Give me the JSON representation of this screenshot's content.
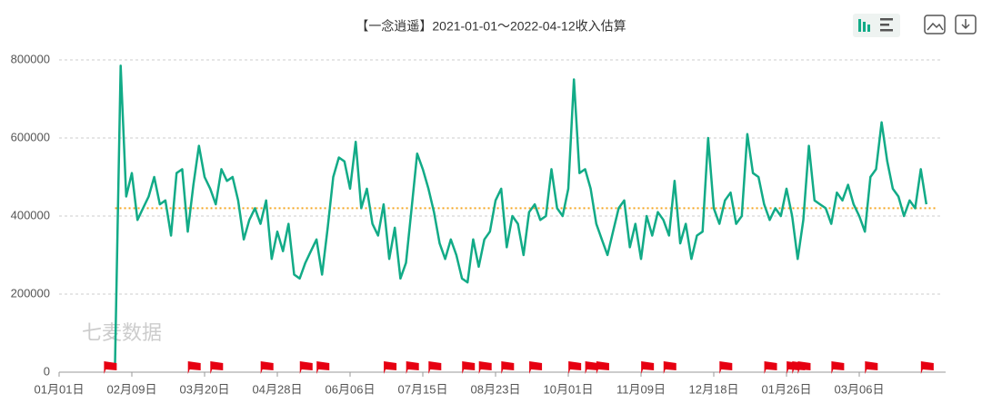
{
  "chart_data": {
    "type": "line",
    "title": "【一念逍遥】2021-01-01～2022-04-12收入估算",
    "watermark": "七麦数据",
    "categories": [
      "01月01日",
      null,
      null,
      null,
      null,
      null,
      null,
      null,
      null,
      null,
      null,
      null,
      null,
      "02月09日",
      null,
      null,
      null,
      null,
      null,
      null,
      null,
      null,
      null,
      null,
      null,
      null,
      "03月20日",
      null,
      null,
      null,
      null,
      null,
      null,
      null,
      null,
      null,
      null,
      null,
      null,
      "04月28日",
      null,
      null,
      null,
      null,
      null,
      null,
      null,
      null,
      null,
      null,
      null,
      null,
      "06月06日",
      null,
      null,
      null,
      null,
      null,
      null,
      null,
      null,
      null,
      null,
      null,
      null,
      "07月15日",
      null,
      null,
      null,
      null,
      null,
      null,
      null,
      null,
      null,
      null,
      null,
      null,
      "08月23日",
      null,
      null,
      null,
      null,
      null,
      null,
      null,
      null,
      null,
      null,
      null,
      null,
      "10月01日",
      null,
      null,
      null,
      null,
      null,
      null,
      null,
      null,
      null,
      null,
      null,
      null,
      "11月09日",
      null,
      null,
      null,
      null,
      null,
      null,
      null,
      null,
      null,
      null,
      null,
      null,
      "12月18日",
      null,
      null,
      null,
      null,
      null,
      null,
      null,
      null,
      null,
      null,
      null,
      null,
      "01月26日",
      null,
      null,
      null,
      null,
      null,
      null,
      null,
      null,
      null,
      null,
      null,
      null,
      "03月06日",
      null,
      null,
      null,
      null,
      null,
      null,
      null,
      null,
      null,
      null,
      null,
      null
    ],
    "series": [
      {
        "color": "#12ab87",
        "values": [
          null,
          null,
          null,
          null,
          null,
          null,
          null,
          null,
          null,
          null,
          20000,
          785000,
          450000,
          510000,
          390000,
          420000,
          450000,
          500000,
          430000,
          440000,
          350000,
          510000,
          520000,
          360000,
          480000,
          580000,
          500000,
          470000,
          430000,
          520000,
          490000,
          500000,
          440000,
          340000,
          390000,
          420000,
          380000,
          440000,
          290000,
          360000,
          310000,
          380000,
          250000,
          240000,
          280000,
          310000,
          340000,
          250000,
          370000,
          500000,
          550000,
          540000,
          470000,
          590000,
          420000,
          470000,
          380000,
          350000,
          430000,
          290000,
          370000,
          240000,
          280000,
          420000,
          560000,
          520000,
          470000,
          410000,
          330000,
          290000,
          340000,
          300000,
          240000,
          230000,
          340000,
          270000,
          340000,
          360000,
          440000,
          470000,
          320000,
          400000,
          380000,
          300000,
          410000,
          430000,
          390000,
          400000,
          520000,
          420000,
          400000,
          470000,
          750000,
          510000,
          520000,
          470000,
          380000,
          340000,
          300000,
          360000,
          420000,
          440000,
          320000,
          380000,
          290000,
          400000,
          350000,
          410000,
          390000,
          350000,
          490000,
          330000,
          380000,
          290000,
          350000,
          360000,
          600000,
          420000,
          380000,
          440000,
          460000,
          380000,
          400000,
          610000,
          510000,
          500000,
          430000,
          390000,
          420000,
          400000,
          470000,
          400000,
          290000,
          390000,
          580000,
          440000,
          430000,
          420000,
          380000,
          460000,
          440000,
          480000,
          430000,
          400000,
          360000,
          500000,
          520000,
          640000,
          540000,
          470000,
          450000,
          400000,
          440000,
          420000,
          520000,
          430000
        ]
      }
    ],
    "mark_line": {
      "value": 420000,
      "color": "#f5a623"
    },
    "events": {
      "color": "#e60012",
      "positions": [
        9,
        24,
        28,
        37,
        44,
        47,
        59,
        63,
        67,
        73,
        76,
        80,
        85,
        92,
        95,
        97,
        105,
        109,
        119,
        127,
        131,
        132,
        133,
        139,
        145,
        155
      ]
    },
    "ylim": [
      0,
      800000
    ],
    "yticks": [
      0,
      200000,
      400000,
      600000,
      800000
    ],
    "grid": true
  }
}
